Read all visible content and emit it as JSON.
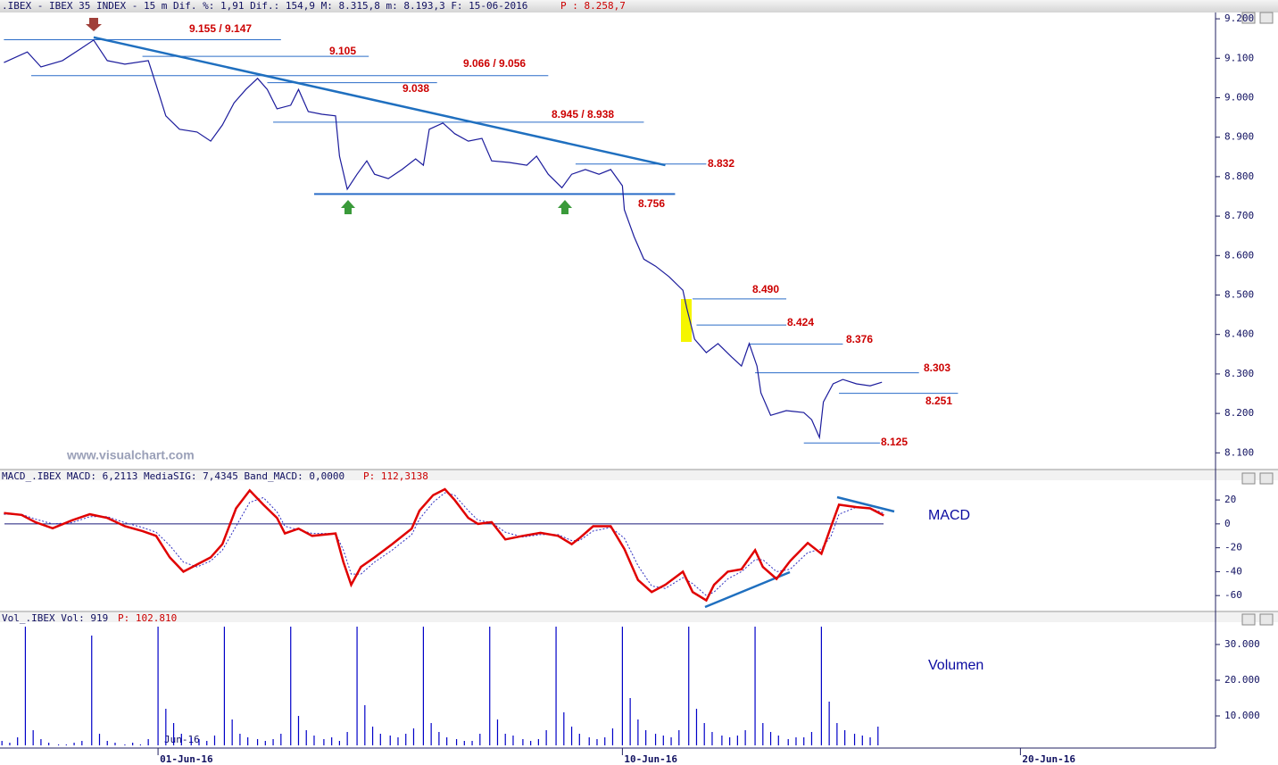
{
  "watermark": "www.visualchart.com",
  "chart_data": [
    {
      "type": "line",
      "title": ".IBEX - IBEX 35 INDEX -  15 m Dif. %: 1,91 Dif.: 154,9 M: 8.315,8 m: 8.193,3 F: 15-06-2016",
      "title_value": "P : 8.258,7",
      "color": "#1c1c9c",
      "xlim": [
        0,
        623
      ],
      "x": [
        2,
        14,
        21,
        32,
        41,
        48,
        55,
        64,
        76,
        80,
        85,
        92,
        101,
        108,
        114,
        120,
        126,
        132,
        137,
        142,
        149,
        153,
        158,
        165,
        172,
        174,
        178,
        183,
        188,
        192,
        199,
        206,
        213,
        217,
        220,
        227,
        233,
        240,
        247,
        252,
        261,
        270,
        275,
        281,
        288,
        293,
        300,
        307,
        313,
        319,
        320,
        325,
        330,
        336,
        343,
        350,
        352,
        356,
        362,
        368,
        375,
        380,
        384,
        388,
        390,
        395,
        403,
        412,
        416,
        420,
        422,
        427,
        432,
        439,
        446,
        452
      ],
      "values": [
        9089,
        9116,
        9078,
        9094,
        9123,
        9146,
        9094,
        9085,
        9094,
        9033,
        8954,
        8920,
        8913,
        8890,
        8931,
        8987,
        9021,
        9049,
        9021,
        8972,
        8981,
        9021,
        8965,
        8958,
        8954,
        8852,
        8768,
        8806,
        8840,
        8806,
        8795,
        8818,
        8845,
        8829,
        8920,
        8936,
        8909,
        8890,
        8897,
        8840,
        8836,
        8829,
        8852,
        8806,
        8772,
        8806,
        8818,
        8806,
        8818,
        8777,
        8716,
        8648,
        8591,
        8573,
        8546,
        8512,
        8467,
        8388,
        8354,
        8377,
        8343,
        8320,
        8377,
        8320,
        8252,
        8195,
        8207,
        8202,
        8184,
        8139,
        8229,
        8275,
        8286,
        8275,
        8270,
        8279
      ],
      "ylim": [
        8060,
        9216
      ],
      "yticks": [
        {
          "value": 9200,
          "label": "9.200"
        },
        {
          "value": 9100,
          "label": "9.100"
        },
        {
          "value": 9000,
          "label": "9.000"
        },
        {
          "value": 8900,
          "label": "8.900"
        },
        {
          "value": 8800,
          "label": "8.800"
        },
        {
          "value": 8700,
          "label": "8.700"
        },
        {
          "value": 8600,
          "label": "8.600"
        },
        {
          "value": 8500,
          "label": "8.500"
        },
        {
          "value": 8400,
          "label": "8.400"
        },
        {
          "value": 8300,
          "label": "8.300"
        },
        {
          "value": 8200,
          "label": "8.200"
        },
        {
          "value": 8100,
          "label": "8.100"
        }
      ],
      "level_color": "#2a6cc8",
      "label_color": "#cc0000",
      "levels": [
        {
          "value": 9147,
          "label": "9.155 / 9.147",
          "x": [
            2,
            144
          ]
        },
        {
          "value": 9105,
          "label": "9.105",
          "x": [
            73,
            189
          ]
        },
        {
          "value": 9056,
          "label": "9.066 / 9.056",
          "x": [
            16,
            281
          ]
        },
        {
          "value": 9038,
          "label": "9.038",
          "x": [
            137,
            224
          ]
        },
        {
          "value": 8938,
          "label": "8.945 / 8.938",
          "x": [
            140,
            330
          ]
        },
        {
          "value": 8832,
          "label": "8.832",
          "x": [
            295,
            362
          ]
        },
        {
          "value": 8756,
          "label": "8.756",
          "x": [
            161,
            346
          ]
        },
        {
          "value": 8490,
          "label": "8.490",
          "x": [
            355,
            403
          ]
        },
        {
          "value": 8424,
          "label": "8.424",
          "x": [
            357,
            403
          ]
        },
        {
          "value": 8376,
          "label": "8.376",
          "x": [
            384,
            432
          ]
        },
        {
          "value": 8303,
          "label": "8.303",
          "x": [
            387,
            471
          ]
        },
        {
          "value": 8251,
          "label": "8.251",
          "x": [
            430,
            491
          ]
        },
        {
          "value": 8125,
          "label": "8.125",
          "x": [
            412,
            451
          ]
        }
      ],
      "trendline": {
        "x": [
          48,
          341
        ],
        "values": [
          9153,
          8829
        ]
      }
    },
    {
      "type": "line",
      "title": "MACD_.IBEX MACD: 6,2113 MediaSIG: 7,4345 Band_MACD: 0,0000",
      "title_value": "P: 112,3138",
      "label": "MACD",
      "xlim": [
        0,
        623
      ],
      "ylim": [
        -73,
        35
      ],
      "yticks": [
        20,
        0,
        -20,
        -40,
        -60
      ],
      "baseline": 0,
      "x": [
        2,
        11,
        18,
        27,
        37,
        46,
        55,
        64,
        73,
        80,
        87,
        94,
        101,
        108,
        114,
        121,
        128,
        135,
        142,
        146,
        153,
        160,
        172,
        176,
        180,
        185,
        192,
        201,
        211,
        215,
        222,
        228,
        233,
        240,
        245,
        252,
        259,
        268,
        277,
        286,
        293,
        297,
        304,
        313,
        320,
        327,
        334,
        341,
        350,
        355,
        362,
        366,
        373,
        380,
        387,
        391,
        398,
        405,
        414,
        421,
        426,
        430,
        439,
        446,
        453
      ],
      "series": [
        {
          "color": "#e00000",
          "values": [
            9,
            7.5,
            1.5,
            -3.7,
            3,
            8,
            5,
            -2,
            -6,
            -10,
            -28,
            -40,
            -34,
            -28,
            -17,
            13,
            28,
            16,
            5,
            -8,
            -4,
            -10,
            -8,
            -32,
            -51,
            -36,
            -28,
            -17,
            -4,
            11,
            24,
            29,
            20,
            5,
            0,
            1.5,
            -13,
            -10,
            -7.5,
            -10,
            -17,
            -12,
            -2,
            -2,
            -21,
            -47,
            -57,
            -51,
            -40,
            -57,
            -64,
            -51,
            -40,
            -38,
            -22,
            -36,
            -46,
            -31,
            -16,
            -25,
            -2,
            16,
            14,
            13,
            7
          ]
        },
        {
          "color": "#3030c0",
          "values": [
            8,
            8,
            4,
            0,
            1,
            6,
            6,
            1,
            -3,
            -7,
            -18,
            -32,
            -36,
            -31,
            -22,
            -2,
            18,
            22,
            10,
            -2,
            -5,
            -8,
            -8,
            -22,
            -42,
            -42,
            -32,
            -22,
            -9,
            4,
            18,
            26,
            24,
            11,
            3,
            1,
            -7,
            -11,
            -9,
            -9,
            -14,
            -14,
            -6,
            -3,
            -12,
            -35,
            -52,
            -54,
            -45,
            -50,
            -60,
            -57,
            -46,
            -40,
            -30,
            -30,
            -40,
            -38,
            -24,
            -21,
            -10,
            8,
            14,
            13,
            9
          ]
        }
      ]
    },
    {
      "type": "bar",
      "title": "Vol_.IBEX Vol: 919",
      "title_value": "P: 102.810",
      "label": "Volumen",
      "inner_label": "Jun-16",
      "color": "#0000c8",
      "xlim": [
        0,
        623
      ],
      "ylim": [
        1750,
        35500
      ],
      "yticks": [
        {
          "value": 30000,
          "label": "30.000"
        },
        {
          "value": 20000,
          "label": "20.000"
        },
        {
          "value": 10000,
          "label": "10.000"
        }
      ],
      "xticks": [
        {
          "value": 81,
          "label": "01-Jun-16"
        },
        {
          "value": 319,
          "label": "10-Jun-16"
        },
        {
          "value": 523,
          "label": "20-Jun-16"
        }
      ],
      "x": [
        1,
        5,
        9,
        13,
        17,
        21,
        25,
        30,
        34,
        38,
        42,
        47,
        51,
        55,
        59,
        64,
        68,
        72,
        76,
        81,
        85,
        89,
        93,
        98,
        102,
        106,
        110,
        115,
        119,
        123,
        127,
        132,
        136,
        140,
        144,
        149,
        153,
        157,
        161,
        166,
        170,
        174,
        178,
        183,
        187,
        191,
        195,
        200,
        204,
        208,
        212,
        217,
        221,
        225,
        229,
        234,
        238,
        242,
        246,
        251,
        255,
        259,
        263,
        268,
        272,
        276,
        280,
        285,
        289,
        293,
        297,
        302,
        306,
        310,
        314,
        319,
        323,
        327,
        331,
        336,
        340,
        344,
        348,
        353,
        357,
        361,
        365,
        370,
        374,
        378,
        382,
        387,
        391,
        395,
        399,
        404,
        408,
        412,
        416,
        421,
        425,
        429,
        433,
        438,
        442,
        446,
        450
      ],
      "values": [
        3000,
        2500,
        4000,
        35000,
        6000,
        3500,
        2500,
        2000,
        2000,
        2500,
        3000,
        32500,
        5000,
        3000,
        2500,
        2000,
        2500,
        2000,
        3500,
        35000,
        12000,
        8000,
        5000,
        4000,
        3500,
        3000,
        4500,
        35000,
        9000,
        5000,
        4000,
        3500,
        3000,
        3500,
        5000,
        35000,
        10000,
        6000,
        4500,
        3500,
        4000,
        3000,
        5500,
        35000,
        13000,
        7000,
        5000,
        4500,
        4000,
        5000,
        6500,
        35000,
        8000,
        5500,
        4000,
        3500,
        3000,
        3000,
        5000,
        35000,
        9000,
        5000,
        4500,
        3500,
        3000,
        3500,
        6000,
        35000,
        11000,
        7000,
        5000,
        4000,
        3500,
        4000,
        6500,
        35000,
        15000,
        9000,
        6000,
        5000,
        4500,
        4000,
        6000,
        35000,
        12000,
        8000,
        5500,
        4500,
        4000,
        4500,
        6000,
        35000,
        8000,
        5500,
        4500,
        3500,
        4000,
        4000,
        5500,
        35000,
        14000,
        8000,
        6000,
        5000,
        4500,
        4000,
        7000
      ]
    }
  ]
}
